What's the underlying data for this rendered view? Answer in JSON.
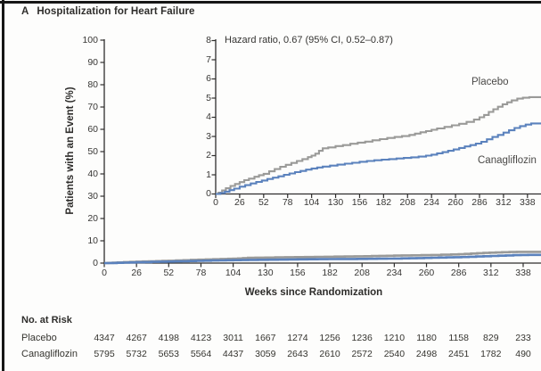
{
  "panel": {
    "letter": "A",
    "title": "Hospitalization for Heart Failure"
  },
  "chart_data": {
    "type": "line",
    "title": "Hospitalization for Heart Failure",
    "xlabel": "Weeks since Randomization",
    "ylabel": "Patients with an Event (%)",
    "annotation": "Hazard ratio, 0.67 (95% CI, 0.52–0.87)",
    "x_ticks": [
      0,
      26,
      52,
      78,
      104,
      130,
      156,
      182,
      208,
      234,
      260,
      286,
      312,
      338
    ],
    "main_axis": {
      "ylim": [
        0,
        100
      ],
      "y_ticks": [
        0,
        10,
        20,
        30,
        40,
        50,
        60,
        70,
        80,
        90,
        100
      ]
    },
    "inset_axis": {
      "ylim": [
        0,
        8
      ],
      "y_ticks": [
        0,
        1,
        2,
        3,
        4,
        5,
        6,
        7,
        8
      ]
    },
    "legend_position": "inline-labels-in-inset",
    "grid": false,
    "series": [
      {
        "name": "Placebo",
        "color": "#9a9a98",
        "points_pct": [
          [
            0,
            0
          ],
          [
            3,
            0.07
          ],
          [
            7,
            0.18
          ],
          [
            11,
            0.3
          ],
          [
            16,
            0.42
          ],
          [
            21,
            0.52
          ],
          [
            26,
            0.62
          ],
          [
            31,
            0.72
          ],
          [
            36,
            0.8
          ],
          [
            42,
            0.9
          ],
          [
            47,
            0.98
          ],
          [
            52,
            1.05
          ],
          [
            58,
            1.18
          ],
          [
            64,
            1.3
          ],
          [
            70,
            1.42
          ],
          [
            76,
            1.52
          ],
          [
            82,
            1.62
          ],
          [
            88,
            1.72
          ],
          [
            94,
            1.82
          ],
          [
            100,
            1.92
          ],
          [
            104,
            2.0
          ],
          [
            108,
            2.1
          ],
          [
            112,
            2.25
          ],
          [
            116,
            2.38
          ],
          [
            122,
            2.43
          ],
          [
            130,
            2.5
          ],
          [
            138,
            2.55
          ],
          [
            146,
            2.62
          ],
          [
            154,
            2.68
          ],
          [
            162,
            2.73
          ],
          [
            170,
            2.8
          ],
          [
            178,
            2.86
          ],
          [
            186,
            2.92
          ],
          [
            194,
            2.97
          ],
          [
            202,
            3.02
          ],
          [
            210,
            3.08
          ],
          [
            216,
            3.15
          ],
          [
            222,
            3.22
          ],
          [
            228,
            3.28
          ],
          [
            234,
            3.35
          ],
          [
            240,
            3.42
          ],
          [
            248,
            3.5
          ],
          [
            256,
            3.58
          ],
          [
            264,
            3.66
          ],
          [
            272,
            3.76
          ],
          [
            280,
            3.88
          ],
          [
            286,
            4.0
          ],
          [
            291,
            4.12
          ],
          [
            296,
            4.28
          ],
          [
            301,
            4.42
          ],
          [
            306,
            4.55
          ],
          [
            311,
            4.68
          ],
          [
            316,
            4.78
          ],
          [
            321,
            4.88
          ],
          [
            327,
            4.97
          ],
          [
            333,
            5.02
          ],
          [
            340,
            5.05
          ]
        ]
      },
      {
        "name": "Canagliflozin",
        "color": "#5b82bd",
        "points_pct": [
          [
            0,
            0
          ],
          [
            5,
            0.05
          ],
          [
            10,
            0.12
          ],
          [
            15,
            0.2
          ],
          [
            20,
            0.28
          ],
          [
            26,
            0.38
          ],
          [
            32,
            0.46
          ],
          [
            38,
            0.55
          ],
          [
            44,
            0.63
          ],
          [
            50,
            0.7
          ],
          [
            56,
            0.78
          ],
          [
            62,
            0.85
          ],
          [
            68,
            0.92
          ],
          [
            74,
            1.0
          ],
          [
            80,
            1.07
          ],
          [
            86,
            1.14
          ],
          [
            92,
            1.2
          ],
          [
            98,
            1.27
          ],
          [
            104,
            1.33
          ],
          [
            110,
            1.38
          ],
          [
            116,
            1.43
          ],
          [
            124,
            1.48
          ],
          [
            132,
            1.53
          ],
          [
            140,
            1.58
          ],
          [
            148,
            1.63
          ],
          [
            156,
            1.68
          ],
          [
            164,
            1.72
          ],
          [
            172,
            1.76
          ],
          [
            180,
            1.79
          ],
          [
            188,
            1.82
          ],
          [
            196,
            1.85
          ],
          [
            204,
            1.88
          ],
          [
            212,
            1.91
          ],
          [
            220,
            1.95
          ],
          [
            228,
            2.0
          ],
          [
            234,
            2.05
          ],
          [
            240,
            2.12
          ],
          [
            246,
            2.18
          ],
          [
            252,
            2.25
          ],
          [
            258,
            2.32
          ],
          [
            264,
            2.4
          ],
          [
            270,
            2.48
          ],
          [
            276,
            2.55
          ],
          [
            282,
            2.63
          ],
          [
            288,
            2.72
          ],
          [
            294,
            2.85
          ],
          [
            300,
            2.97
          ],
          [
            306,
            3.08
          ],
          [
            312,
            3.2
          ],
          [
            318,
            3.32
          ],
          [
            324,
            3.44
          ],
          [
            330,
            3.54
          ],
          [
            336,
            3.62
          ],
          [
            342,
            3.68
          ]
        ]
      }
    ]
  },
  "at_risk": {
    "heading": "No. at Risk",
    "rows": [
      {
        "label": "Placebo",
        "values": [
          4347,
          4267,
          4198,
          4123,
          3011,
          1667,
          1274,
          1256,
          1236,
          1210,
          1180,
          1158,
          829,
          233
        ]
      },
      {
        "label": "Canagliflozin",
        "values": [
          5795,
          5732,
          5653,
          5564,
          4437,
          3059,
          2643,
          2610,
          2572,
          2540,
          2498,
          2451,
          1782,
          490
        ]
      }
    ]
  },
  "colors": {
    "placebo": "#9a9a98",
    "canagliflozin": "#5b82bd",
    "axis": "#2f2e2d",
    "frame": "#161616",
    "text": "#2e2d2b"
  }
}
